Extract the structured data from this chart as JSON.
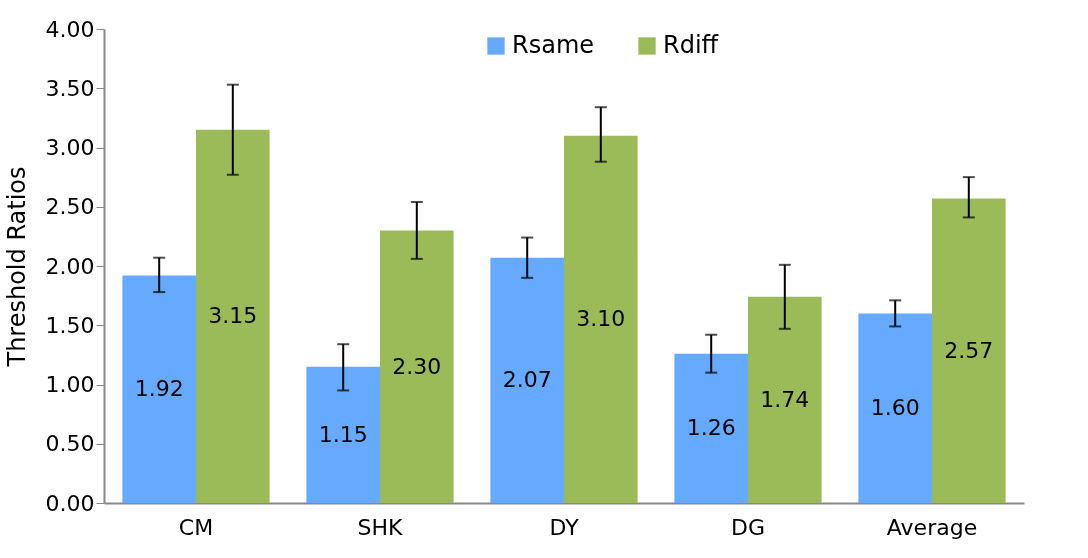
{
  "chart_data": {
    "type": "bar",
    "ylabel": "Threshold Ratios",
    "categories": [
      "CM",
      "SHK",
      "DY",
      "DG",
      "Average"
    ],
    "series": [
      {
        "name": "Rsame",
        "color": "#66aaff",
        "values": [
          1.92,
          1.15,
          2.07,
          1.26,
          1.6
        ],
        "value_labels": [
          "1.92",
          "1.15",
          "2.07",
          "1.26",
          "1.60"
        ],
        "errors": [
          [
            1.78,
            2.07
          ],
          [
            0.95,
            1.34
          ],
          [
            1.9,
            2.24
          ],
          [
            1.1,
            1.42
          ],
          [
            1.49,
            1.71
          ]
        ]
      },
      {
        "name": "Rdiff",
        "color": "#9bbb59",
        "values": [
          3.15,
          2.3,
          3.1,
          1.74,
          2.57
        ],
        "value_labels": [
          "3.15",
          "2.30",
          "3.10",
          "1.74",
          "2.57"
        ],
        "errors": [
          [
            2.77,
            3.53
          ],
          [
            2.06,
            2.54
          ],
          [
            2.88,
            3.34
          ],
          [
            1.47,
            2.01
          ],
          [
            2.41,
            2.75
          ]
        ]
      }
    ],
    "ylim": [
      0,
      4
    ],
    "yticks": [
      {
        "value": 0,
        "label": "0.00"
      },
      {
        "value": 0.5,
        "label": "0.50"
      },
      {
        "value": 1,
        "label": "1.00"
      },
      {
        "value": 1.5,
        "label": "1.50"
      },
      {
        "value": 2,
        "label": "2.00"
      },
      {
        "value": 2.5,
        "label": "2.50"
      },
      {
        "value": 3,
        "label": "3.00"
      },
      {
        "value": 3.5,
        "label": "3.50"
      },
      {
        "value": 4,
        "label": "4.00"
      }
    ],
    "legend": "top",
    "grid": false
  }
}
